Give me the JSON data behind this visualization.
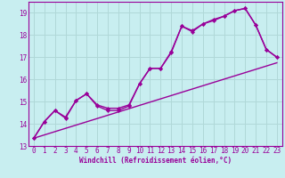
{
  "background_color": "#c8eef0",
  "grid_color": "#b0d8d8",
  "line_color": "#990099",
  "xlim": [
    -0.5,
    23.5
  ],
  "ylim": [
    13,
    19.5
  ],
  "yticks": [
    13,
    14,
    15,
    16,
    17,
    18,
    19
  ],
  "xticks": [
    0,
    1,
    2,
    3,
    4,
    5,
    6,
    7,
    8,
    9,
    10,
    11,
    12,
    13,
    14,
    15,
    16,
    17,
    18,
    19,
    20,
    21,
    22,
    23
  ],
  "xlabel": "Windchill (Refroidissement éolien,°C)",
  "line1_x": [
    0,
    1,
    2,
    3,
    4,
    5,
    6,
    7,
    8,
    9,
    10,
    11,
    12,
    13,
    14,
    15,
    16,
    17,
    18,
    19,
    20,
    21,
    22,
    23
  ],
  "line1_y": [
    13.35,
    14.1,
    14.6,
    14.25,
    15.05,
    15.35,
    14.8,
    14.6,
    14.6,
    14.8,
    15.8,
    16.5,
    16.5,
    17.25,
    18.4,
    18.2,
    18.5,
    18.7,
    18.85,
    19.1,
    19.2,
    18.45,
    17.35,
    17.0
  ],
  "line2_x": [
    0,
    1,
    2,
    3,
    4,
    5,
    6,
    7,
    8,
    9,
    10,
    11,
    12,
    13,
    14,
    15,
    16,
    17,
    18,
    19,
    20,
    21,
    22,
    23
  ],
  "line2_y": [
    13.35,
    14.1,
    14.6,
    14.3,
    15.05,
    15.35,
    14.85,
    14.7,
    14.7,
    14.85,
    15.8,
    16.5,
    16.5,
    17.2,
    18.4,
    18.15,
    18.5,
    18.65,
    18.85,
    19.1,
    19.2,
    18.45,
    17.35,
    17.0
  ],
  "line3_x": [
    0,
    23
  ],
  "line3_y": [
    13.35,
    16.75
  ]
}
